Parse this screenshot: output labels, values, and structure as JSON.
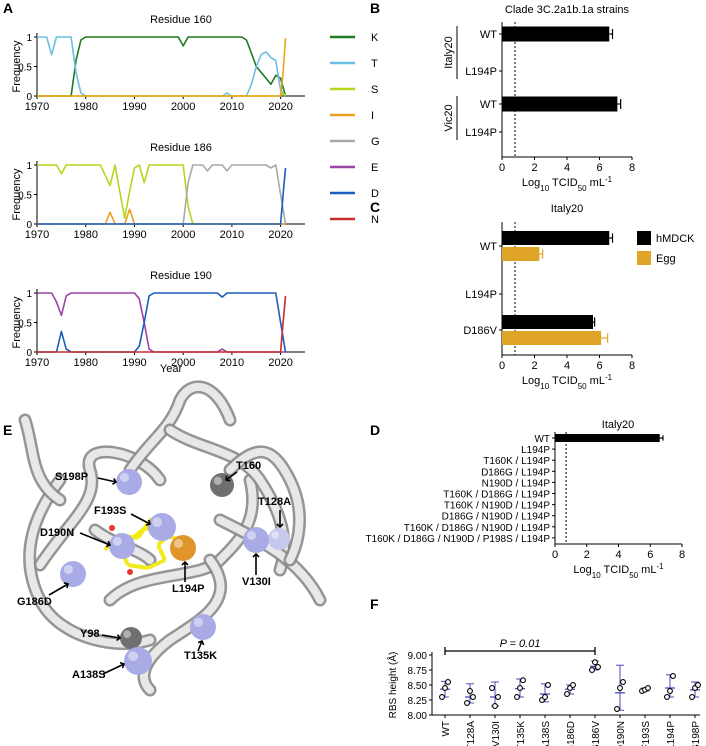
{
  "panel_letters": [
    "A",
    "B",
    "C",
    "D",
    "E",
    "F"
  ],
  "colors": {
    "K": "#1e7b1e",
    "T": "#6bbfe0",
    "S": "#b5d61f",
    "I": "#eba21d",
    "G": "#a9a9a9",
    "E": "#9a44a3",
    "D": "#1b5ebd",
    "N": "#c92b2b",
    "hMDCK": "#000000",
    "Egg": "#e0a528",
    "F_bar": "#4b4bc2",
    "sphere": "#a9abe6",
    "ligand": "#f3ea1b"
  },
  "chart_data": [
    {
      "panel": "A",
      "type": "line",
      "title": "Residue 160",
      "ylabel": "Frequency",
      "xlabel": "",
      "xlim": [
        1970,
        2025
      ],
      "ylim": [
        0,
        1
      ],
      "x_ticks": [
        "1970",
        "1980",
        "1990",
        "2000",
        "2010",
        "2020"
      ],
      "y_ticks": [
        "0",
        "0.5",
        "1"
      ],
      "legend": [
        "K",
        "T",
        "S",
        "I",
        "G",
        "E",
        "D",
        "N"
      ],
      "series": [
        {
          "name": "K",
          "points": [
            [
              1970,
              0
            ],
            [
              1977,
              0
            ],
            [
              1978,
              0.6
            ],
            [
              1979,
              0.95
            ],
            [
              1980,
              1
            ],
            [
              1999,
              1
            ],
            [
              2000,
              0.85
            ],
            [
              2001,
              1
            ],
            [
              2012,
              1
            ],
            [
              2013,
              0.95
            ],
            [
              2015,
              0.5
            ],
            [
              2017,
              0.3
            ],
            [
              2018,
              0.2
            ],
            [
              2019,
              0.35
            ],
            [
              2020,
              0.3
            ],
            [
              2021,
              0
            ]
          ]
        },
        {
          "name": "T",
          "points": [
            [
              1970,
              1
            ],
            [
              1972,
              1
            ],
            [
              1973,
              0.7
            ],
            [
              1974,
              1
            ],
            [
              1977,
              1
            ],
            [
              1978,
              0.4
            ],
            [
              1979,
              0.05
            ],
            [
              1980,
              0
            ],
            [
              2008,
              0
            ],
            [
              2009,
              0.05
            ],
            [
              2010,
              0
            ],
            [
              2013,
              0
            ],
            [
              2014,
              0.2
            ],
            [
              2015,
              0.5
            ],
            [
              2016,
              0.7
            ],
            [
              2017,
              0.75
            ],
            [
              2018,
              0.65
            ],
            [
              2019,
              0.6
            ],
            [
              2020,
              0.1
            ],
            [
              2021,
              0
            ]
          ]
        },
        {
          "name": "S",
          "points": [
            [
              1970,
              0
            ],
            [
              2020,
              0
            ],
            [
              2020.5,
              0.05
            ],
            [
              2021,
              0
            ]
          ]
        },
        {
          "name": "I",
          "points": [
            [
              1970,
              0
            ],
            [
              2020,
              0
            ],
            [
              2020.5,
              0.4
            ],
            [
              2021,
              0.98
            ]
          ]
        }
      ]
    },
    {
      "panel": "A",
      "type": "line",
      "title": "Residue 186",
      "ylabel": "Frequency",
      "xlabel": "",
      "xlim": [
        1970,
        2025
      ],
      "ylim": [
        0,
        1
      ],
      "x_ticks": [
        "1970",
        "1980",
        "1990",
        "2000",
        "2010",
        "2020"
      ],
      "y_ticks": [
        "0",
        "0.5",
        "1"
      ],
      "series": [
        {
          "name": "S",
          "points": [
            [
              1970,
              1
            ],
            [
              1974,
              1
            ],
            [
              1975,
              0.85
            ],
            [
              1976,
              1
            ],
            [
              1983,
              1
            ],
            [
              1985,
              0.65
            ],
            [
              1986,
              1
            ],
            [
              1987,
              0.55
            ],
            [
              1988,
              0.1
            ],
            [
              1989,
              0.55
            ],
            [
              1990,
              0.95
            ],
            [
              1991,
              1
            ],
            [
              1992,
              0.7
            ],
            [
              1993,
              1
            ],
            [
              2000,
              1
            ],
            [
              2001,
              0.3
            ],
            [
              2002,
              0
            ],
            [
              2021,
              0
            ]
          ]
        },
        {
          "name": "I",
          "points": [
            [
              1970,
              0
            ],
            [
              1984,
              0
            ],
            [
              1985,
              0.2
            ],
            [
              1986,
              0
            ],
            [
              1988,
              0
            ],
            [
              1989,
              0.25
            ],
            [
              1990,
              0
            ],
            [
              2021,
              0
            ]
          ]
        },
        {
          "name": "G",
          "points": [
            [
              1970,
              0
            ],
            [
              2000,
              0
            ],
            [
              2001,
              0.7
            ],
            [
              2002,
              1
            ],
            [
              2004,
              1
            ],
            [
              2005,
              0.9
            ],
            [
              2006,
              1
            ],
            [
              2008,
              1
            ],
            [
              2009,
              0.9
            ],
            [
              2010,
              1
            ],
            [
              2017,
              1
            ],
            [
              2018,
              0.95
            ],
            [
              2019,
              1
            ],
            [
              2020,
              0.5
            ],
            [
              2021,
              0
            ]
          ]
        },
        {
          "name": "D",
          "points": [
            [
              1970,
              0
            ],
            [
              2020,
              0
            ],
            [
              2020.5,
              0.5
            ],
            [
              2021,
              0.95
            ]
          ]
        }
      ]
    },
    {
      "panel": "A",
      "type": "line",
      "title": "Residue 190",
      "ylabel": "Frequency",
      "xlabel": "Year",
      "xlim": [
        1970,
        2025
      ],
      "ylim": [
        0,
        1
      ],
      "x_ticks": [
        "1970",
        "1980",
        "1990",
        "2000",
        "2010",
        "2020"
      ],
      "y_ticks": [
        "0",
        "0.5",
        "1"
      ],
      "series": [
        {
          "name": "E",
          "points": [
            [
              1970,
              1
            ],
            [
              1973,
              1
            ],
            [
              1974,
              0.85
            ],
            [
              1975,
              0.62
            ],
            [
              1976,
              0.95
            ],
            [
              1977,
              1
            ],
            [
              1990,
              1
            ],
            [
              1991,
              0.9
            ],
            [
              1992,
              0.5
            ],
            [
              1993,
              0.05
            ],
            [
              1994,
              0
            ],
            [
              2007,
              0
            ],
            [
              2008,
              0.05
            ],
            [
              2009,
              0
            ],
            [
              2021,
              0
            ]
          ]
        },
        {
          "name": "D",
          "points": [
            [
              1970,
              0
            ],
            [
              1974,
              0
            ],
            [
              1975,
              0.35
            ],
            [
              1976,
              0.05
            ],
            [
              1977,
              0
            ],
            [
              1990,
              0
            ],
            [
              1991,
              0.1
            ],
            [
              1992,
              0.5
            ],
            [
              1993,
              0.95
            ],
            [
              1994,
              1
            ],
            [
              2007,
              1
            ],
            [
              2008,
              0.93
            ],
            [
              2009,
              1
            ],
            [
              2019,
              1
            ],
            [
              2020,
              0.5
            ],
            [
              2021,
              0
            ]
          ]
        },
        {
          "name": "N",
          "points": [
            [
              1970,
              0
            ],
            [
              2020,
              0
            ],
            [
              2020.5,
              0.5
            ],
            [
              2021,
              0.95
            ]
          ]
        }
      ]
    },
    {
      "panel": "B",
      "type": "bar",
      "orientation": "horizontal",
      "title": "Clade 3C.2a1b.1a strains",
      "xlabel": "Log10 TCID50 mL-1",
      "xlabel_parts": [
        "Log",
        "10",
        " TCID",
        "50",
        " mL",
        "-1"
      ],
      "xlim": [
        0,
        8
      ],
      "x_ticks": [
        "0",
        "2",
        "4",
        "6",
        "8"
      ],
      "detection_limit": 0.8,
      "groups": [
        {
          "name": "Italy20",
          "categories": [
            "WT",
            "L194P"
          ],
          "values": [
            6.6,
            null
          ],
          "errors": [
            0.2,
            null
          ]
        },
        {
          "name": "Vic20",
          "categories": [
            "WT",
            "L194P"
          ],
          "values": [
            7.1,
            null
          ],
          "errors": [
            0.2,
            null
          ]
        }
      ]
    },
    {
      "panel": "C",
      "type": "bar",
      "orientation": "horizontal",
      "title": "Italy20",
      "xlabel": "Log10 TCID50 mL-1",
      "xlabel_parts": [
        "Log",
        "10",
        " TCID",
        "50",
        " mL",
        "-1"
      ],
      "xlim": [
        0,
        8
      ],
      "x_ticks": [
        "0",
        "2",
        "4",
        "6",
        "8"
      ],
      "detection_limit": 0.8,
      "categories": [
        "WT",
        "L194P",
        "D186V"
      ],
      "series": [
        {
          "name": "hMDCK",
          "values": [
            6.6,
            null,
            5.6
          ],
          "errors": [
            0.2,
            null,
            0.1
          ]
        },
        {
          "name": "Egg",
          "values": [
            2.3,
            null,
            6.1
          ],
          "errors": [
            0.2,
            null,
            0.4
          ]
        }
      ]
    },
    {
      "panel": "D",
      "type": "bar",
      "orientation": "horizontal",
      "title": "Italy20",
      "xlabel": "Log10 TCID50 mL-1",
      "xlabel_parts": [
        "Log",
        "10",
        " TCID",
        "50",
        " mL",
        "-1"
      ],
      "xlim": [
        0,
        8
      ],
      "x_ticks": [
        "0",
        "2",
        "4",
        "6",
        "8"
      ],
      "detection_limit": 0.7,
      "categories": [
        "WT",
        "L194P",
        "T160K / L194P",
        "D186G / L194P",
        "N190D / L194P",
        "T160K / D186G / L194P",
        "T160K / N190D / L194P",
        "D186G / N190D / L194P",
        "T160K / D186G / N190D / L194P",
        "T160K / D186G / N190D / P198S / L194P"
      ],
      "values": [
        6.6,
        null,
        null,
        null,
        null,
        null,
        null,
        null,
        null,
        null
      ],
      "errors": [
        0.2,
        null,
        null,
        null,
        null,
        null,
        null,
        null,
        null,
        null
      ]
    },
    {
      "panel": "F",
      "type": "scatter",
      "ylabel": "RBS height (Å)",
      "ylim": [
        8.0,
        9.0
      ],
      "y_ticks": [
        "8.00",
        "8.25",
        "8.50",
        "8.75",
        "9.00"
      ],
      "categories": [
        "WT",
        "T128A",
        "V130I",
        "T135K",
        "A138S",
        "G186D",
        "G186V",
        "D190N",
        "F193S",
        "L194P",
        "S198P"
      ],
      "points": [
        [
          8.3,
          8.45,
          8.55
        ],
        [
          8.2,
          8.4,
          8.3
        ],
        [
          8.45,
          8.15,
          8.3
        ],
        [
          8.3,
          8.45,
          8.58
        ],
        [
          8.25,
          8.3,
          8.5
        ],
        [
          8.35,
          8.45,
          8.5
        ],
        [
          8.75,
          8.88,
          8.8
        ],
        [
          8.1,
          8.45,
          8.55
        ],
        [
          8.4,
          8.42,
          8.45
        ],
        [
          8.3,
          8.4,
          8.65
        ],
        [
          8.3,
          8.45,
          8.5
        ]
      ],
      "means": [
        8.43,
        8.3,
        8.3,
        8.44,
        8.35,
        8.43,
        8.81,
        8.37,
        8.42,
        8.45,
        8.42
      ],
      "sd_low": [
        8.3,
        8.2,
        8.15,
        8.3,
        8.22,
        8.35,
        8.75,
        8.08,
        8.4,
        8.3,
        8.3
      ],
      "sd_high": [
        8.56,
        8.52,
        8.55,
        8.6,
        8.52,
        8.5,
        8.9,
        8.83,
        8.45,
        8.67,
        8.55
      ],
      "annotation": {
        "text": "P = 0.01",
        "from": "WT",
        "to": "G186V",
        "level": 9.0
      }
    }
  ],
  "structure": {
    "labels": [
      "T160",
      "S198P",
      "F193S",
      "T128A",
      "D190N",
      "V130I",
      "L194P",
      "G186D",
      "Y98",
      "A138S",
      "T135K"
    ]
  }
}
